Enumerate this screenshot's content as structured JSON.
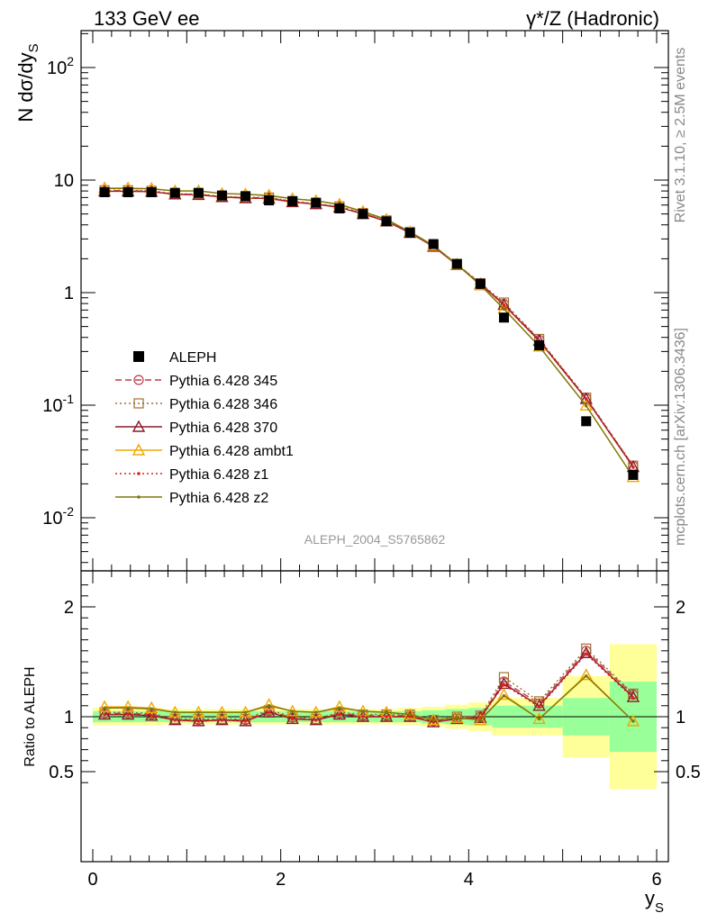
{
  "header": {
    "left": "133 GeV ee",
    "right": "γ*/Z (Hadronic)"
  },
  "side_labels": {
    "rivet": "Rivet 3.1.10, ≥ 2.5M events",
    "mcplots": "mcplots.cern.ch [arXiv:1306.3436]"
  },
  "watermark": "ALEPH_2004_S5765862",
  "axes": {
    "ylabel_top": "N dσ/dy",
    "ylabel_top_sub": "S",
    "ylabel_bottom": "Ratio to ALEPH",
    "xlabel": "y",
    "xlabel_sub": "S"
  },
  "colors": {
    "data": "#000000",
    "p345": "#c0394b",
    "p346": "#a07030",
    "p370": "#8b1a2b",
    "ambt1": "#f0a800",
    "z1": "#e0201a",
    "z2": "#7a7a10",
    "band_inner": "#99ff99",
    "band_outer": "#ffff99"
  },
  "chart_data": {
    "type": "line",
    "title": "133 GeV ee",
    "xlabel": "y_S",
    "ylabel": "N dσ/dy_S",
    "xlim": [
      -0.2,
      6.1
    ],
    "ylim_top": [
      0.003,
      200
    ],
    "ylim_bottom": [
      0.4,
      2.35
    ],
    "y_scale_top": "log",
    "x_ticks": [
      "0",
      "2",
      "4",
      "6"
    ],
    "y_ticks_top": [
      "10^{-2}",
      "10^{-1}",
      "1",
      "10",
      "10^{2}"
    ],
    "y_ticks_bottom": [
      "0.5",
      "1",
      "2"
    ],
    "x": [
      0.125,
      0.375,
      0.625,
      0.875,
      1.125,
      1.375,
      1.625,
      1.875,
      2.125,
      2.375,
      2.625,
      2.875,
      3.125,
      3.375,
      3.625,
      3.875,
      4.125,
      4.375,
      4.75,
      5.25,
      5.75
    ],
    "bin_edges": [
      0.0,
      0.25,
      0.5,
      0.75,
      1.0,
      1.25,
      1.5,
      1.75,
      2.0,
      2.25,
      2.5,
      2.75,
      3.0,
      3.25,
      3.5,
      3.75,
      4.0,
      4.25,
      4.5,
      5.0,
      5.5,
      6.0
    ],
    "legend": {
      "placement": "left-center",
      "entries": [
        "ALEPH",
        "Pythia 6.428 345",
        "Pythia 6.428 346",
        "Pythia 6.428 370",
        "Pythia 6.428 ambt1",
        "Pythia 6.428 z1",
        "Pythia 6.428 z2"
      ]
    },
    "data_series": {
      "name": "ALEPH",
      "values": [
        7.8,
        7.8,
        7.8,
        7.7,
        7.7,
        7.3,
        7.2,
        6.6,
        6.5,
        6.3,
        5.6,
        5.0,
        4.3,
        3.4,
        2.7,
        1.8,
        1.2,
        0.6,
        0.34,
        0.072,
        0.024
      ],
      "band_inner": [
        0.05,
        0.05,
        0.05,
        0.05,
        0.05,
        0.05,
        0.05,
        0.05,
        0.05,
        0.05,
        0.05,
        0.05,
        0.05,
        0.05,
        0.06,
        0.07,
        0.08,
        0.1,
        0.1,
        0.17,
        0.32
      ],
      "band_outer": [
        0.08,
        0.08,
        0.08,
        0.07,
        0.07,
        0.07,
        0.07,
        0.07,
        0.07,
        0.07,
        0.07,
        0.07,
        0.07,
        0.08,
        0.09,
        0.11,
        0.13,
        0.17,
        0.17,
        0.37,
        0.66
      ]
    },
    "series": [
      {
        "name": "Pythia 6.428 345",
        "style": "dashed",
        "marker": "circle",
        "color_key": "p345",
        "ratio": [
          1.03,
          1.03,
          1.02,
          0.97,
          0.97,
          0.97,
          0.97,
          1.05,
          0.99,
          0.97,
          1.03,
          1.01,
          1.01,
          1.01,
          0.96,
          0.99,
          1.0,
          1.32,
          1.12,
          1.6,
          1.2
        ]
      },
      {
        "name": "Pythia 6.428 346",
        "style": "dotted",
        "marker": "square",
        "color_key": "p346",
        "ratio": [
          1.04,
          1.04,
          1.03,
          0.98,
          0.98,
          0.98,
          0.98,
          1.06,
          1.0,
          0.98,
          1.04,
          1.02,
          1.02,
          1.02,
          0.97,
          1.0,
          1.01,
          1.36,
          1.14,
          1.62,
          1.21
        ]
      },
      {
        "name": "Pythia 6.428 370",
        "style": "solid",
        "marker": "triangle",
        "color_key": "p370",
        "ratio": [
          1.02,
          1.02,
          1.01,
          0.97,
          0.96,
          0.97,
          0.96,
          1.04,
          0.98,
          0.97,
          1.02,
          1.0,
          1.0,
          1.0,
          0.95,
          0.98,
          0.99,
          1.3,
          1.1,
          1.58,
          1.18
        ]
      },
      {
        "name": "Pythia 6.428 ambt1",
        "style": "solid",
        "marker": "triangle",
        "color_key": "ambt1",
        "ratio": [
          1.09,
          1.09,
          1.08,
          1.04,
          1.04,
          1.04,
          1.04,
          1.11,
          1.05,
          1.04,
          1.09,
          1.05,
          1.04,
          1.02,
          0.97,
          0.99,
          0.97,
          1.2,
          0.98,
          1.38,
          0.96
        ]
      },
      {
        "name": "Pythia 6.428 z1",
        "style": "dotted",
        "marker": "dot",
        "color_key": "z1",
        "ratio": [
          1.02,
          1.02,
          1.01,
          0.97,
          0.96,
          0.97,
          0.96,
          1.04,
          0.98,
          0.97,
          1.02,
          1.0,
          1.0,
          1.0,
          0.95,
          0.98,
          0.99,
          1.29,
          1.09,
          1.57,
          1.17
        ]
      },
      {
        "name": "Pythia 6.428 z2",
        "style": "solid",
        "marker": "dot",
        "color_key": "z2",
        "ratio": [
          1.08,
          1.08,
          1.07,
          1.04,
          1.04,
          1.04,
          1.04,
          1.1,
          1.05,
          1.04,
          1.08,
          1.05,
          1.04,
          1.02,
          0.97,
          0.99,
          0.97,
          1.19,
          0.98,
          1.37,
          0.96
        ]
      }
    ]
  }
}
